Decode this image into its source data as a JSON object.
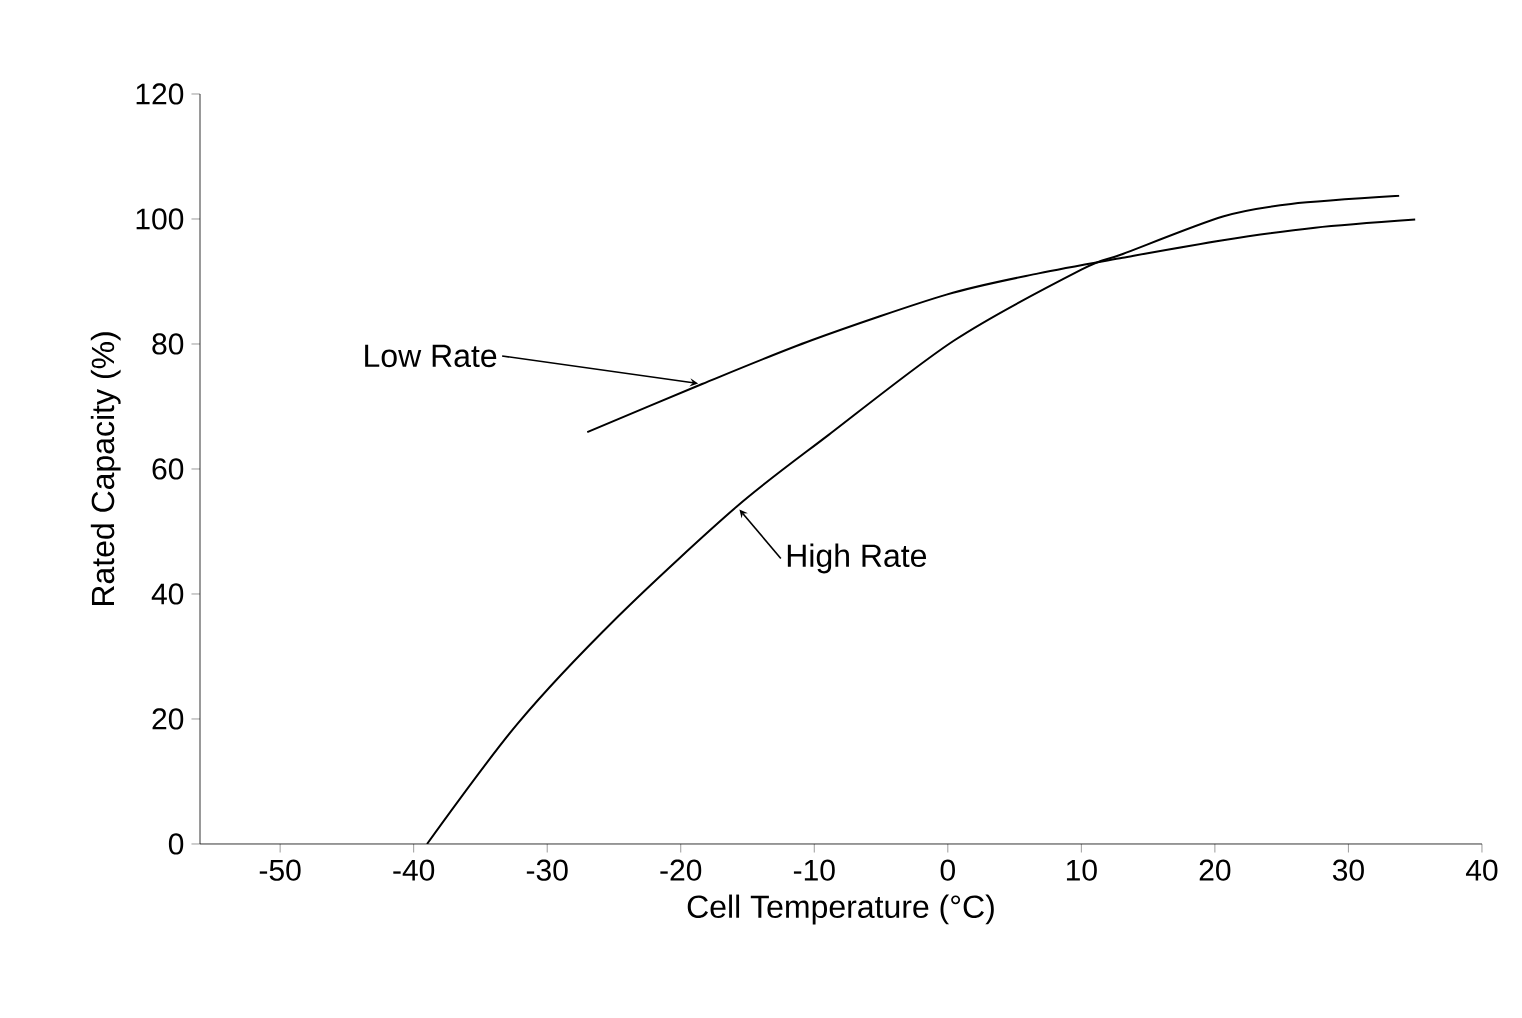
{
  "chart_data": {
    "type": "line",
    "xlabel": "Cell Temperature (°C)",
    "ylabel": "Rated Capacity (%)",
    "xlim": [
      -56,
      40
    ],
    "ylim": [
      0,
      120
    ],
    "xticks": [
      -50,
      -40,
      -30,
      -20,
      -10,
      0,
      10,
      20,
      30,
      40
    ],
    "yticks": [
      0,
      20,
      40,
      60,
      80,
      100,
      120
    ],
    "grid": false,
    "legend": false,
    "marker": "none",
    "line_style": "solid",
    "series": [
      {
        "name": "Low Rate",
        "color": "#000000",
        "x": [
          -27,
          -18.4,
          -10.2,
          -0.1,
          6.8,
          13.1,
          20.6,
          27.5,
          35
        ],
        "values": [
          65.9,
          73.6,
          80.6,
          87.9,
          91.3,
          93.8,
          96.6,
          98.6,
          99.9
        ]
      },
      {
        "name": "High Rate",
        "color": "#000000",
        "x": [
          -39,
          -32.2,
          -24.7,
          -15.8,
          -8.9,
          0.5,
          10,
          13.1,
          20.6,
          25.7,
          33.8
        ],
        "values": [
          0,
          19.3,
          36.4,
          54,
          65.5,
          80.6,
          91.9,
          94.4,
          100.4,
          102.4,
          103.7
        ]
      }
    ]
  }
}
